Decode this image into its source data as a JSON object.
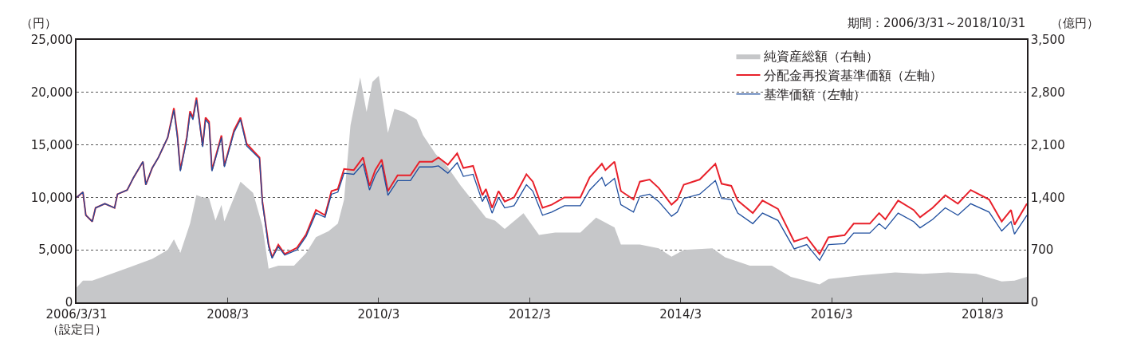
{
  "chart_data": {
    "type": "line",
    "ylabel": "（円）",
    "y2label": "（億円）",
    "annotations": [
      "期間：2006/3/31～2018/10/31"
    ],
    "xlim": [
      "2006-03-31",
      "2018-10-31"
    ],
    "xticks": [
      {
        "value": "2006-03-31",
        "label": "2006/3/31\n（設定日）"
      },
      {
        "value": "2008-03-31",
        "label": "2008/3"
      },
      {
        "value": "2010-03-31",
        "label": "2010/3"
      },
      {
        "value": "2012-03-31",
        "label": "2012/3"
      },
      {
        "value": "2014-03-31",
        "label": "2014/3"
      },
      {
        "value": "2016-03-31",
        "label": "2016/3"
      },
      {
        "value": "2018-03-31",
        "label": "2018/3"
      }
    ],
    "ylim": [
      0,
      25000
    ],
    "yticks": [
      0,
      {
        "value": 5000,
        "label": "5,000"
      },
      {
        "value": 10000,
        "label": "10,000"
      },
      {
        "value": 15000,
        "label": "15,000"
      },
      {
        "value": 20000,
        "label": "20,000"
      },
      {
        "value": 25000,
        "label": "25,000"
      }
    ],
    "y2lim": [
      0,
      3500
    ],
    "y2ticks": [
      0,
      700,
      {
        "value": 1400,
        "label": "1,400"
      },
      {
        "value": 2100,
        "label": "2,100"
      },
      {
        "value": 2800,
        "label": "2,800"
      },
      {
        "value": 3500,
        "label": "3,500"
      }
    ],
    "grid": "y",
    "legend": "top right",
    "series": [
      {
        "name": "純資産総額（右軸）",
        "type": "area",
        "axis": "y2",
        "color": "#c6c7c9",
        "x": [
          "2006-04-01",
          "2006-05-01",
          "2006-06-15",
          "2006-09-15",
          "2006-12-15",
          "2007-04-01",
          "2007-06-15",
          "2007-07-15",
          "2007-08-15",
          "2007-10-01",
          "2007-11-01",
          "2007-12-01",
          "2008-01-01",
          "2008-02-01",
          "2008-03-01",
          "2008-03-15",
          "2008-06-01",
          "2008-08-01",
          "2008-09-15",
          "2008-10-15",
          "2008-12-01",
          "2009-02-15",
          "2009-04-15",
          "2009-06-01",
          "2009-08-01",
          "2009-09-15",
          "2009-10-15",
          "2009-11-15",
          "2010-01-01",
          "2010-02-01",
          "2010-03-01",
          "2010-04-01",
          "2010-04-15",
          "2010-05-15",
          "2010-06-15",
          "2010-08-01",
          "2010-10-01",
          "2010-11-01",
          "2011-01-01",
          "2011-03-01",
          "2011-05-01",
          "2011-07-15",
          "2011-09-01",
          "2011-10-15",
          "2011-12-01",
          "2012-03-01",
          "2012-05-15",
          "2012-08-01",
          "2012-12-01",
          "2013-02-15",
          "2013-05-15",
          "2013-06-15",
          "2013-09-15",
          "2013-12-15",
          "2014-02-15",
          "2014-04-15",
          "2014-09-01",
          "2014-11-01",
          "2015-03-01",
          "2015-06-15",
          "2015-09-15",
          "2016-02-01",
          "2016-03-15",
          "2016-08-15",
          "2017-02-01",
          "2017-06-15",
          "2017-10-15",
          "2018-03-01",
          "2018-07-01",
          "2018-09-01",
          "2018-10-31"
        ],
        "values": [
          200,
          290,
          290,
          380,
          470,
          580,
          700,
          840,
          660,
          1050,
          1430,
          1400,
          1390,
          1090,
          1300,
          1080,
          1610,
          1460,
          1020,
          450,
          490,
          490,
          660,
          870,
          950,
          1050,
          1370,
          2360,
          3000,
          2540,
          2940,
          3020,
          2790,
          2260,
          2580,
          2540,
          2440,
          2230,
          1980,
          1800,
          1560,
          1300,
          1130,
          1090,
          980,
          1190,
          900,
          930,
          930,
          1130,
          1000,
          770,
          770,
          720,
          610,
          700,
          720,
          600,
          490,
          490,
          340,
          240,
          310,
          360,
          400,
          380,
          400,
          380,
          280,
          290,
          340
        ]
      },
      {
        "name": "分配金再投資基準価額（左軸）",
        "color": "#e8202a",
        "x": [
          "2006-04-01",
          "2006-05-01",
          "2006-05-15",
          "2006-06-15",
          "2006-07-01",
          "2006-08-15",
          "2006-10-01",
          "2006-10-15",
          "2006-12-01",
          "2007-01-01",
          "2007-02-15",
          "2007-03-01",
          "2007-04-01",
          "2007-05-01",
          "2007-06-15",
          "2007-07-15",
          "2007-08-01",
          "2007-08-15",
          "2007-09-15",
          "2007-10-01",
          "2007-10-15",
          "2007-11-01",
          "2007-12-01",
          "2007-12-15",
          "2008-01-01",
          "2008-01-15",
          "2008-03-01",
          "2008-03-15",
          "2008-05-01",
          "2008-06-01",
          "2008-07-01",
          "2008-09-01",
          "2008-09-15",
          "2008-10-15",
          "2008-11-01",
          "2008-12-01",
          "2009-01-01",
          "2009-03-01",
          "2009-04-15",
          "2009-06-01",
          "2009-07-15",
          "2009-08-15",
          "2009-09-15",
          "2009-10-15",
          "2009-12-01",
          "2010-01-15",
          "2010-02-15",
          "2010-03-15",
          "2010-04-15",
          "2010-05-15",
          "2010-07-01",
          "2010-09-01",
          "2010-10-15",
          "2010-12-15",
          "2011-01-15",
          "2011-03-01",
          "2011-04-15",
          "2011-05-15",
          "2011-07-01",
          "2011-08-15",
          "2011-09-01",
          "2011-10-01",
          "2011-11-01",
          "2011-12-01",
          "2012-01-15",
          "2012-03-15",
          "2012-04-15",
          "2012-06-01",
          "2012-07-15",
          "2012-09-15",
          "2012-12-01",
          "2013-01-15",
          "2013-03-15",
          "2013-04-01",
          "2013-05-15",
          "2013-06-15",
          "2013-08-15",
          "2013-09-15",
          "2013-11-01",
          "2013-12-15",
          "2014-02-15",
          "2014-03-15",
          "2014-04-15",
          "2014-07-01",
          "2014-09-15",
          "2014-10-15",
          "2014-12-01",
          "2015-01-01",
          "2015-03-15",
          "2015-05-01",
          "2015-07-15",
          "2015-10-01",
          "2015-12-01",
          "2016-02-01",
          "2016-03-15",
          "2016-06-01",
          "2016-07-15",
          "2016-10-01",
          "2016-11-15",
          "2016-12-15",
          "2017-02-15",
          "2017-05-01",
          "2017-06-01",
          "2017-08-01",
          "2017-10-01",
          "2017-12-01",
          "2018-02-01",
          "2018-05-01",
          "2018-07-01",
          "2018-08-15",
          "2018-09-01",
          "2018-10-31"
        ],
        "values": [
          10000,
          10500,
          8300,
          7700,
          9000,
          9400,
          9000,
          10300,
          10700,
          11900,
          13400,
          11200,
          12800,
          13800,
          15700,
          18500,
          15900,
          12600,
          15700,
          18200,
          17600,
          19500,
          14900,
          17600,
          17200,
          12600,
          15900,
          13000,
          16400,
          17600,
          15100,
          13800,
          9600,
          5500,
          4300,
          5500,
          4600,
          5200,
          6500,
          8800,
          8300,
          10600,
          10800,
          12700,
          12600,
          13800,
          11100,
          12600,
          13600,
          10600,
          12100,
          12100,
          13400,
          13400,
          13800,
          13100,
          14200,
          12800,
          13000,
          10200,
          10800,
          9000,
          10600,
          9600,
          10000,
          12200,
          11500,
          9000,
          9300,
          10000,
          10000,
          11900,
          13200,
          12600,
          13400,
          10600,
          9800,
          11500,
          11700,
          10900,
          9300,
          9800,
          11200,
          11700,
          13200,
          11300,
          11100,
          9700,
          8500,
          9700,
          8900,
          5800,
          6200,
          4600,
          6200,
          6400,
          7500,
          7500,
          8500,
          7900,
          9700,
          8800,
          8100,
          9000,
          10200,
          9400,
          10700,
          9800,
          7700,
          8800,
          7400,
          9400
        ]
      },
      {
        "name": "基準価額（左軸）",
        "color": "#1f4e9e",
        "x": [
          "2006-04-01",
          "2006-05-01",
          "2006-05-15",
          "2006-06-15",
          "2006-07-01",
          "2006-08-15",
          "2006-10-01",
          "2006-10-15",
          "2006-12-01",
          "2007-01-01",
          "2007-02-15",
          "2007-03-01",
          "2007-04-01",
          "2007-05-01",
          "2007-06-15",
          "2007-07-15",
          "2007-08-01",
          "2007-08-15",
          "2007-09-15",
          "2007-10-01",
          "2007-10-15",
          "2007-11-01",
          "2007-12-01",
          "2007-12-15",
          "2008-01-01",
          "2008-01-15",
          "2008-03-01",
          "2008-03-15",
          "2008-05-01",
          "2008-06-01",
          "2008-07-01",
          "2008-09-01",
          "2008-09-15",
          "2008-10-15",
          "2008-11-01",
          "2008-12-01",
          "2009-01-01",
          "2009-03-01",
          "2009-04-15",
          "2009-06-01",
          "2009-07-15",
          "2009-08-15",
          "2009-09-15",
          "2009-10-15",
          "2009-12-01",
          "2010-01-15",
          "2010-02-15",
          "2010-03-15",
          "2010-04-15",
          "2010-05-15",
          "2010-07-01",
          "2010-09-01",
          "2010-10-15",
          "2010-12-15",
          "2011-01-15",
          "2011-03-01",
          "2011-04-15",
          "2011-05-15",
          "2011-07-01",
          "2011-08-15",
          "2011-09-01",
          "2011-10-01",
          "2011-11-01",
          "2011-12-01",
          "2012-01-15",
          "2012-03-15",
          "2012-04-15",
          "2012-06-01",
          "2012-07-15",
          "2012-09-15",
          "2012-12-01",
          "2013-01-15",
          "2013-03-15",
          "2013-04-01",
          "2013-05-15",
          "2013-06-15",
          "2013-08-15",
          "2013-09-15",
          "2013-11-01",
          "2013-12-15",
          "2014-02-15",
          "2014-03-15",
          "2014-04-15",
          "2014-07-01",
          "2014-09-15",
          "2014-10-15",
          "2014-12-01",
          "2015-01-01",
          "2015-03-15",
          "2015-05-01",
          "2015-07-15",
          "2015-10-01",
          "2015-12-01",
          "2016-02-01",
          "2016-03-15",
          "2016-06-01",
          "2016-07-15",
          "2016-10-01",
          "2016-11-15",
          "2016-12-15",
          "2017-02-15",
          "2017-05-01",
          "2017-06-01",
          "2017-08-01",
          "2017-10-01",
          "2017-12-01",
          "2018-02-01",
          "2018-05-01",
          "2018-07-01",
          "2018-08-15",
          "2018-09-01",
          "2018-10-31"
        ],
        "values": [
          10000,
          10500,
          8300,
          7700,
          9000,
          9400,
          9000,
          10300,
          10700,
          11900,
          13400,
          11200,
          12800,
          13800,
          15700,
          18300,
          15700,
          12500,
          15500,
          18000,
          17400,
          19300,
          14800,
          17400,
          17000,
          12500,
          15700,
          12900,
          16200,
          17400,
          14900,
          13700,
          9500,
          5300,
          4200,
          5300,
          4500,
          5000,
          6300,
          8500,
          8100,
          10300,
          10500,
          12300,
          12200,
          13200,
          10700,
          12100,
          13100,
          10200,
          11600,
          11600,
          12900,
          12900,
          13000,
          12300,
          13300,
          12000,
          12200,
          9600,
          10200,
          8500,
          10000,
          9000,
          9200,
          11200,
          10600,
          8300,
          8600,
          9200,
          9200,
          10700,
          11900,
          11100,
          11800,
          9300,
          8600,
          10100,
          10300,
          9600,
          8200,
          8600,
          9900,
          10300,
          11600,
          9900,
          9800,
          8500,
          7500,
          8500,
          7800,
          5100,
          5500,
          4000,
          5500,
          5600,
          6600,
          6600,
          7500,
          7000,
          8500,
          7700,
          7100,
          7900,
          9000,
          8300,
          9400,
          8600,
          6800,
          7700,
          6500,
          8300
        ]
      }
    ]
  }
}
